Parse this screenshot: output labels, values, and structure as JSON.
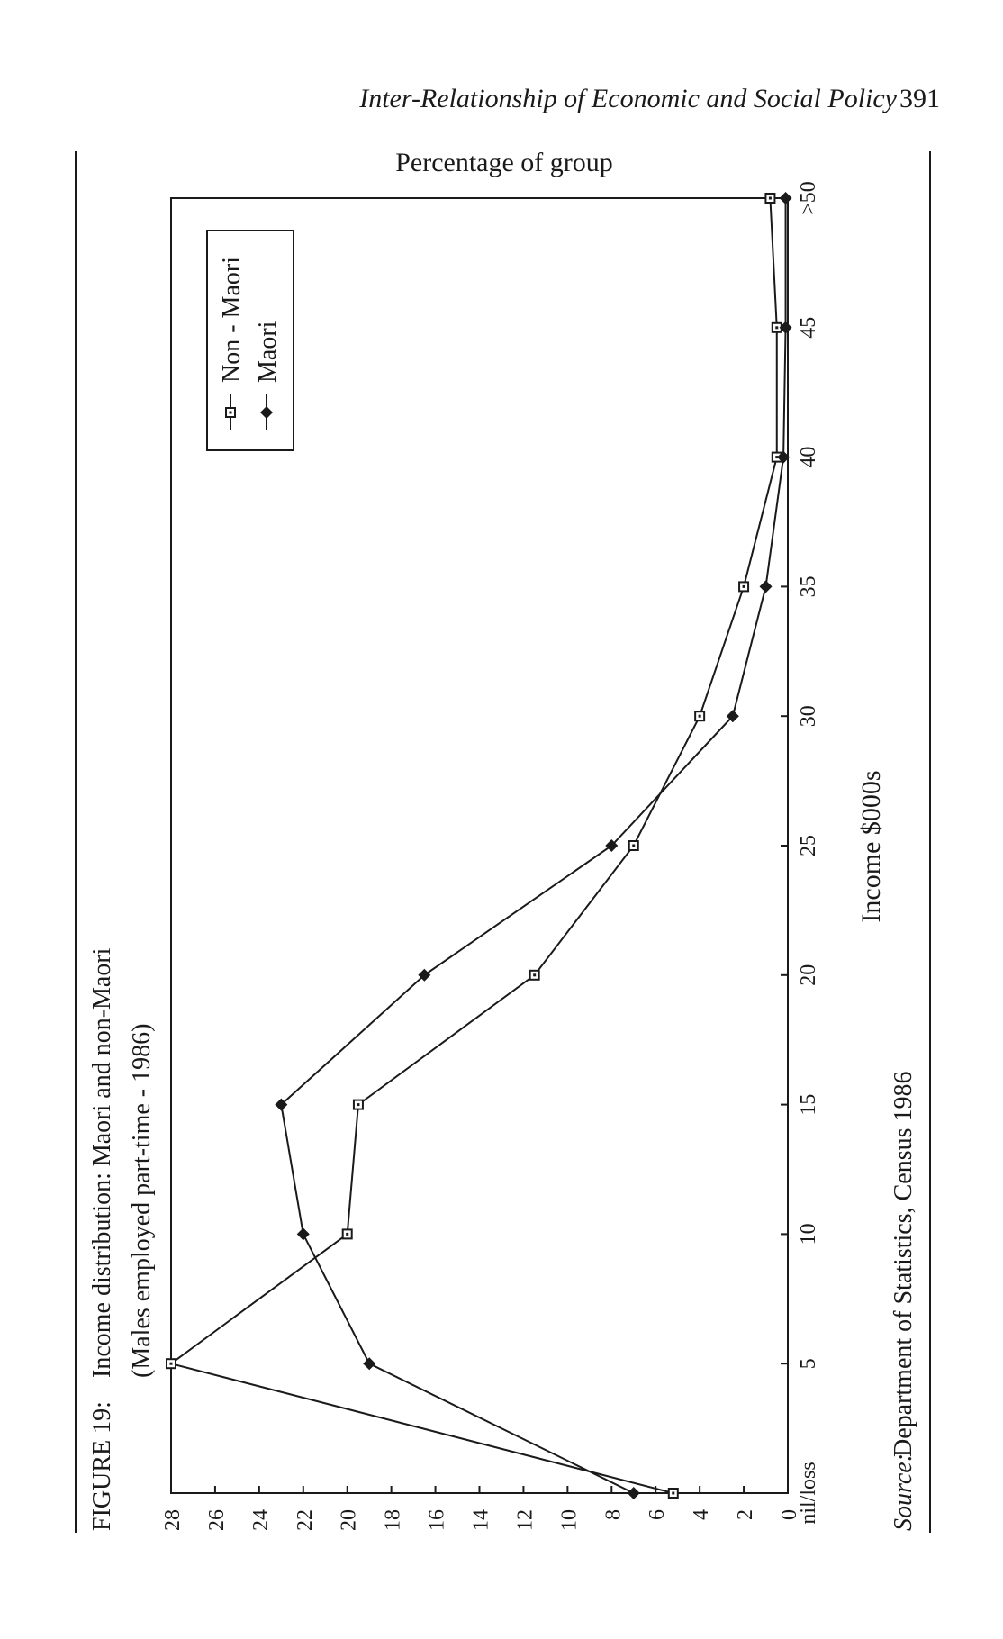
{
  "page": {
    "running_head": "Inter-Relationship of Economic and Social Policy",
    "page_number": "391"
  },
  "figure": {
    "label": "FIGURE 19:",
    "caption_line1": "Income distribution: Maori and non-Maori",
    "caption_line2": "(Males employed part-time - 1986)",
    "source_label": "Source:",
    "source_text": "Department of Statistics, Census 1986"
  },
  "chart_data": {
    "type": "line",
    "orientation": "rotated 90° counter-clockwise on the page",
    "title": "",
    "xlabel": "Income $000s",
    "ylabel": "Percentage of group",
    "categories": [
      "nil/loss",
      "5",
      "10",
      "15",
      "20",
      "25",
      "30",
      "35",
      "40",
      "45",
      ">50"
    ],
    "ylim": [
      0,
      28
    ],
    "yticks": [
      0,
      2,
      4,
      6,
      8,
      10,
      12,
      14,
      16,
      18,
      20,
      22,
      24,
      26,
      28
    ],
    "grid": false,
    "legend_placement": "top-right",
    "series": [
      {
        "name": "Non - Maori",
        "marker": "open-square",
        "values": [
          5.2,
          28.0,
          20.0,
          19.5,
          11.5,
          7.0,
          4.0,
          2.0,
          0.5,
          0.5,
          0.8
        ]
      },
      {
        "name": "Maori",
        "marker": "filled-diamond",
        "values": [
          7.0,
          19.0,
          22.0,
          23.0,
          16.5,
          8.0,
          2.5,
          1.0,
          0.2,
          0.1,
          0.1
        ]
      }
    ]
  },
  "colors": {
    "ink": "#1a1a1a",
    "paper": "#ffffff"
  }
}
